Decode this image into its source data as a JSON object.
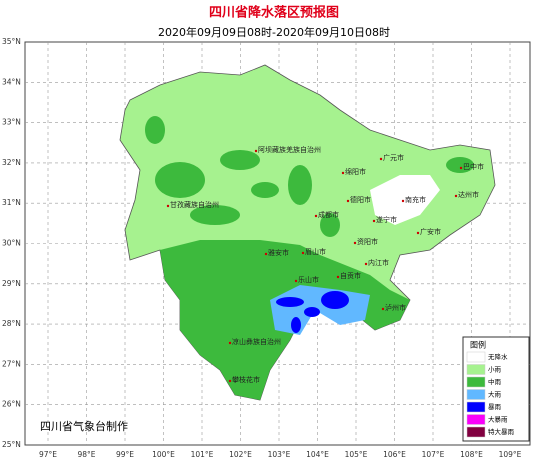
{
  "header": {
    "title": "四川省降水落区预报图",
    "subtitle": "2020年09月09日08时-2020年09月10日08时"
  },
  "lat_labels": [
    "35°N",
    "34°N",
    "33°N",
    "32°N",
    "31°N",
    "30°N",
    "29°N",
    "28°N",
    "27°N",
    "26°N",
    "25°N"
  ],
  "lon_labels": [
    "97°E",
    "98°E",
    "99°E",
    "100°E",
    "101°E",
    "102°E",
    "103°E",
    "104°E",
    "105°E",
    "106°E",
    "107°E",
    "108°E",
    "109°E"
  ],
  "places": [
    "阿坝藏族羌族自治州",
    "广元市",
    "巴中市",
    "绵阳市",
    "甘孜藏族自治州",
    "德阳市",
    "南充市",
    "达州市",
    "成都市",
    "遂宁市",
    "广安市",
    "资阳市",
    "雅安市",
    "眉山市",
    "内江市",
    "乐山市",
    "自贡市",
    "泸州市",
    "凉山彝族自治州",
    "攀枝花市"
  ],
  "legend": {
    "title": "图例",
    "items": [
      {
        "label": "无降水",
        "color": "#ffffff"
      },
      {
        "label": "小雨",
        "color": "#a6f28f"
      },
      {
        "label": "中雨",
        "color": "#3dba3d"
      },
      {
        "label": "大雨",
        "color": "#61b8ff"
      },
      {
        "label": "暴雨",
        "color": "#0000fe"
      },
      {
        "label": "大暴雨",
        "color": "#fa00fa"
      },
      {
        "label": "特大暴雨",
        "color": "#810040"
      }
    ]
  },
  "footer": "四川省气象台制作"
}
